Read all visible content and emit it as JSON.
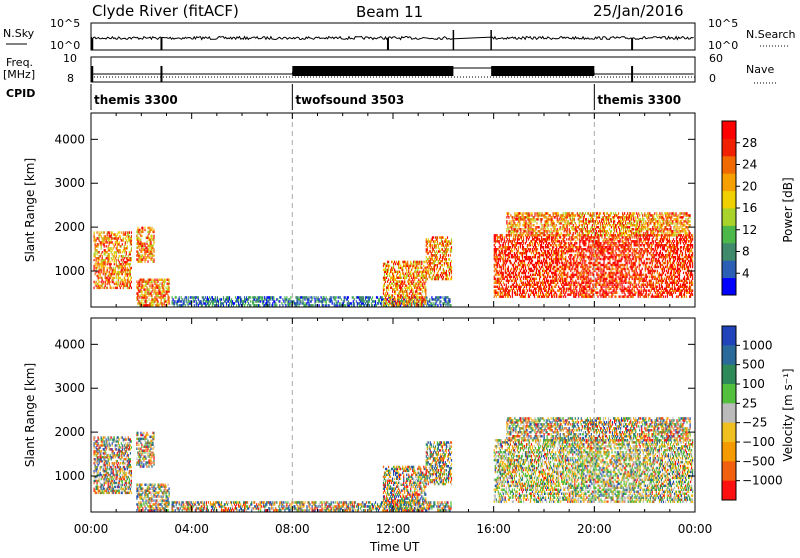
{
  "header": {
    "station": "Clyde River (fitACF)",
    "beam": "Beam 11",
    "date": "25/Jan/2016"
  },
  "status_panels": {
    "nsky_label": "N.Sky",
    "nsky_ticks": [
      "10^5",
      "10^0"
    ],
    "nsearch_label": "N.Search",
    "nsearch_ticks": [
      "10^5",
      "10^0"
    ],
    "freq_label": "Freq.",
    "freq_unit": "[MHz]",
    "freq_ticks": [
      "10",
      "8"
    ],
    "nave_label": "Nave",
    "nave_ticks": [
      "60",
      "0"
    ],
    "cpid_label": "CPID",
    "cpid_segments": [
      {
        "label": "themis 3300",
        "start": 0,
        "end": 8
      },
      {
        "label": "twofsound 3503",
        "start": 8,
        "end": 20
      },
      {
        "label": "themis 3300",
        "start": 20,
        "end": 24
      }
    ],
    "data_gaps": [
      [
        14.4,
        15.9
      ]
    ]
  },
  "chart_data": [
    {
      "type": "heatmap",
      "name": "power",
      "ylabel": "Slant Range [km]",
      "yticks": [
        "1000",
        "2000",
        "3000",
        "4000"
      ],
      "ylim": [
        180,
        4600
      ],
      "xlim": [
        0,
        24
      ],
      "colorbar_label": "Power [dB]",
      "colorbar_ticks": [
        "4",
        "8",
        "12",
        "16",
        "20",
        "24",
        "28"
      ],
      "colors": [
        "#0000ff",
        "#2a5fb5",
        "#3f8a6a",
        "#4cb84a",
        "#a9d22a",
        "#f0d000",
        "#f5a000",
        "#f06a00",
        "#f02000",
        "#ff0000"
      ]
    },
    {
      "type": "heatmap",
      "name": "velocity",
      "ylabel": "Slant Range [km]",
      "yticks": [
        "1000",
        "2000",
        "3000",
        "4000"
      ],
      "ylim": [
        180,
        4600
      ],
      "xlim": [
        0,
        24
      ],
      "xlabel": "Time UT",
      "xticks": [
        "00:00",
        "04:00",
        "08:00",
        "12:00",
        "16:00",
        "20:00",
        "00:00"
      ],
      "colorbar_label": "Velocity [m s⁻¹]",
      "colorbar_ticks": [
        "1000",
        "500",
        "100",
        "25",
        "−25",
        "−100",
        "−500",
        "−1000"
      ],
      "colors": [
        "#2244bb",
        "#2a6a9a",
        "#2f8a5a",
        "#52c03c",
        "#bbbbbb",
        "#f0c020",
        "#f59a00",
        "#f06010",
        "#ff1010"
      ]
    }
  ],
  "echo_regions": [
    {
      "t0": 0.1,
      "t1": 1.6,
      "r0": 600,
      "r1": 1900,
      "s": 0
    },
    {
      "t0": 1.8,
      "t1": 2.5,
      "r0": 1200,
      "r1": 2000,
      "s": 1
    },
    {
      "t0": 1.8,
      "t1": 3.1,
      "r0": 200,
      "r1": 800,
      "s": 2
    },
    {
      "t0": 3.2,
      "t1": 14.3,
      "r0": 200,
      "r1": 420,
      "s": 3
    },
    {
      "t0": 11.6,
      "t1": 13.3,
      "r0": 200,
      "r1": 1200,
      "s": 4
    },
    {
      "t0": 13.3,
      "t1": 14.3,
      "r0": 800,
      "r1": 1750,
      "s": 5
    },
    {
      "t0": 16.0,
      "t1": 23.9,
      "r0": 400,
      "r1": 1800,
      "s": 6
    },
    {
      "t0": 16.5,
      "t1": 23.8,
      "r0": 1800,
      "r1": 2300,
      "s": 7
    }
  ]
}
